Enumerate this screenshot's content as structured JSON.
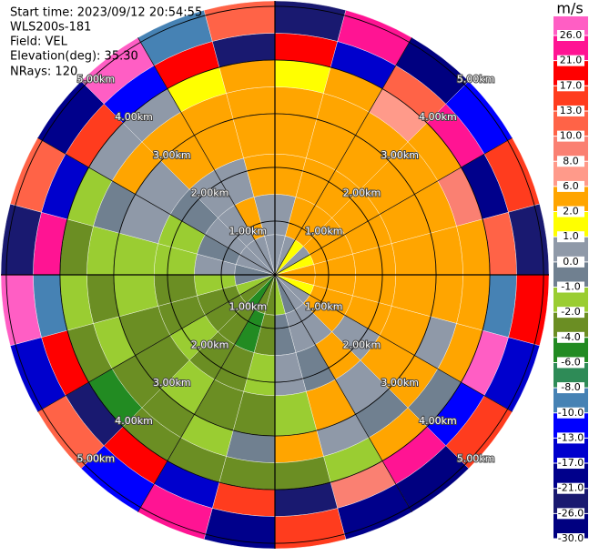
{
  "chart_data": {
    "type": "ppi",
    "header_lines": [
      "Start time: 2023/09/12 20:54:55",
      "WLS200s-181",
      "Field: VEL",
      "Elevation(deg): 35.30",
      "NRays: 120"
    ],
    "azimuth_edges": [
      0,
      15,
      30,
      45,
      60,
      75,
      90,
      105,
      120,
      135,
      150,
      165,
      180,
      195,
      210,
      225,
      240,
      255,
      270,
      285,
      300,
      315,
      330,
      345,
      360
    ],
    "range_edges": [
      0,
      0.75,
      1.5,
      2.25,
      3,
      3.5,
      4,
      4.5,
      5.1
    ],
    "values": [
      [
        0.5,
        0.5,
        3,
        4,
        3,
        1.5,
        18,
        -22
      ],
      [
        0.5,
        3,
        3,
        3,
        4,
        3,
        -14,
        23
      ],
      [
        1.5,
        3,
        3,
        4,
        3,
        7,
        11,
        -27
      ],
      [
        0.5,
        3,
        3,
        3,
        4,
        3,
        24,
        -12
      ],
      [
        1.5,
        3,
        4,
        3,
        3,
        9,
        -19,
        15
      ],
      [
        3,
        3,
        3,
        4,
        3,
        4,
        12,
        -24
      ],
      [
        3,
        3,
        4,
        3,
        3,
        3,
        -9,
        19
      ],
      [
        1.5,
        3,
        3,
        3,
        0.5,
        3,
        27,
        -16
      ],
      [
        0.5,
        3,
        0.5,
        3,
        3,
        -0.5,
        -11,
        14
      ],
      [
        0.5,
        0.5,
        3,
        0.5,
        -0.5,
        3,
        22,
        -28
      ],
      [
        -0.5,
        0.5,
        -0.5,
        3,
        0.5,
        -1.5,
        9,
        -18
      ],
      [
        -1.5,
        -0.5,
        0.5,
        -1.5,
        3,
        -3,
        -25,
        16
      ],
      [
        -3,
        -3,
        -1.5,
        -3,
        -0.5,
        -3,
        13,
        -20
      ],
      [
        -3,
        -5,
        -3,
        -3,
        -1.5,
        -3,
        -15,
        25
      ],
      [
        -5,
        -3,
        -3,
        -1.5,
        -3,
        -3,
        20,
        -11
      ],
      [
        -3,
        -3,
        -1.5,
        -3,
        -3,
        -5,
        -23,
        10
      ],
      [
        -1.5,
        -3,
        -3,
        -3,
        -1.5,
        -3,
        17,
        -14
      ],
      [
        -0.5,
        -1.5,
        -3,
        -1.5,
        -3,
        -1.5,
        -9,
        28
      ],
      [
        -0.5,
        0.5,
        -1.5,
        -1.5,
        -1.5,
        -3,
        21,
        -26
      ],
      [
        0.5,
        -0.5,
        -1.5,
        0.5,
        -0.5,
        -1.5,
        -17,
        12
      ],
      [
        0.5,
        0.5,
        -0.5,
        0.5,
        3,
        0.5,
        14,
        -21
      ],
      [
        0.5,
        0.5,
        0.5,
        3,
        3,
        0.5,
        -12,
        26
      ],
      [
        0.5,
        3,
        0.5,
        3,
        3,
        1.5,
        19,
        -9
      ],
      [
        0.5,
        0.5,
        3,
        3,
        4,
        3,
        -22,
        11
      ]
    ],
    "rings": [
      {
        "value": 1,
        "label": "1.00km"
      },
      {
        "value": 2,
        "label": "2.00km"
      },
      {
        "value": 3,
        "label": "3.00km"
      },
      {
        "value": 4,
        "label": "4.00km"
      },
      {
        "value": 5,
        "label": "5.00km"
      }
    ],
    "colorbar": {
      "title": "m/s",
      "ticks": [
        {
          "value": 26,
          "label": "26.0"
        },
        {
          "value": 21,
          "label": "21.0"
        },
        {
          "value": 17,
          "label": "17.0"
        },
        {
          "value": 13,
          "label": "13.0"
        },
        {
          "value": 10,
          "label": "10.0"
        },
        {
          "value": 8,
          "label": "8.0"
        },
        {
          "value": 6,
          "label": "6.0"
        },
        {
          "value": 2,
          "label": "2.0"
        },
        {
          "value": 1,
          "label": "1.0"
        },
        {
          "value": 0,
          "label": "0.0"
        },
        {
          "value": -1,
          "label": "-1.0"
        },
        {
          "value": -2,
          "label": "-2.0"
        },
        {
          "value": -4,
          "label": "-4.0"
        },
        {
          "value": -6,
          "label": "-6.0"
        },
        {
          "value": -8,
          "label": "-8.0"
        },
        {
          "value": -10,
          "label": "-10.0"
        },
        {
          "value": -13,
          "label": "-13.0"
        },
        {
          "value": -17,
          "label": "-17.0"
        },
        {
          "value": -21,
          "label": "-21.0"
        },
        {
          "value": -26,
          "label": "-26.0"
        },
        {
          "value": -30,
          "label": "-30.0"
        }
      ],
      "colors": [
        "#ff5ec4",
        "#ff1493",
        "#ff0000",
        "#ff3c1e",
        "#ff6347",
        "#fa8072",
        "#ff9a8a",
        "#ffa500",
        "#ffff00",
        "#8f99a8",
        "#708090",
        "#9acd32",
        "#6b8e23",
        "#228b22",
        "#2e8b57",
        "#4682b4",
        "#0000ff",
        "#0000cd",
        "#00008b",
        "#191970",
        "#000080"
      ]
    }
  }
}
